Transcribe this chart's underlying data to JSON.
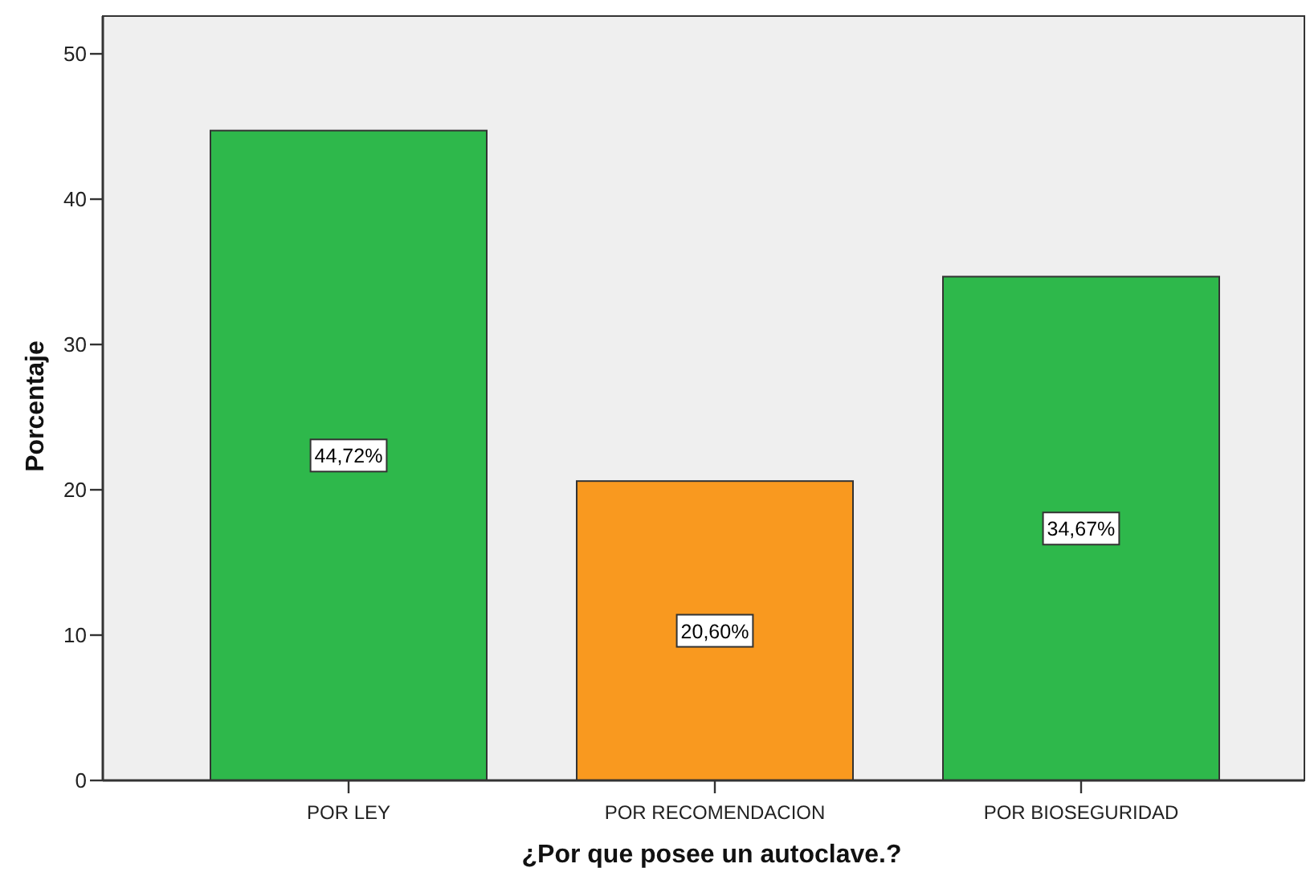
{
  "chart_data": {
    "type": "bar",
    "xlabel": "¿Por que posee un autoclave.?",
    "ylabel": "Porcentaje",
    "categories": [
      "POR LEY",
      "POR RECOMENDACION",
      "POR BIOSEGURIDAD"
    ],
    "values": [
      44.72,
      20.6,
      34.67
    ],
    "colors": [
      "#2eb84b",
      "#f9991f",
      "#2eb84b"
    ],
    "value_labels": [
      "44,72%",
      "20,60%",
      "34,67%"
    ],
    "ylim": [
      0,
      52.6
    ],
    "yticks": [
      0,
      10,
      20,
      30,
      40,
      50
    ]
  }
}
